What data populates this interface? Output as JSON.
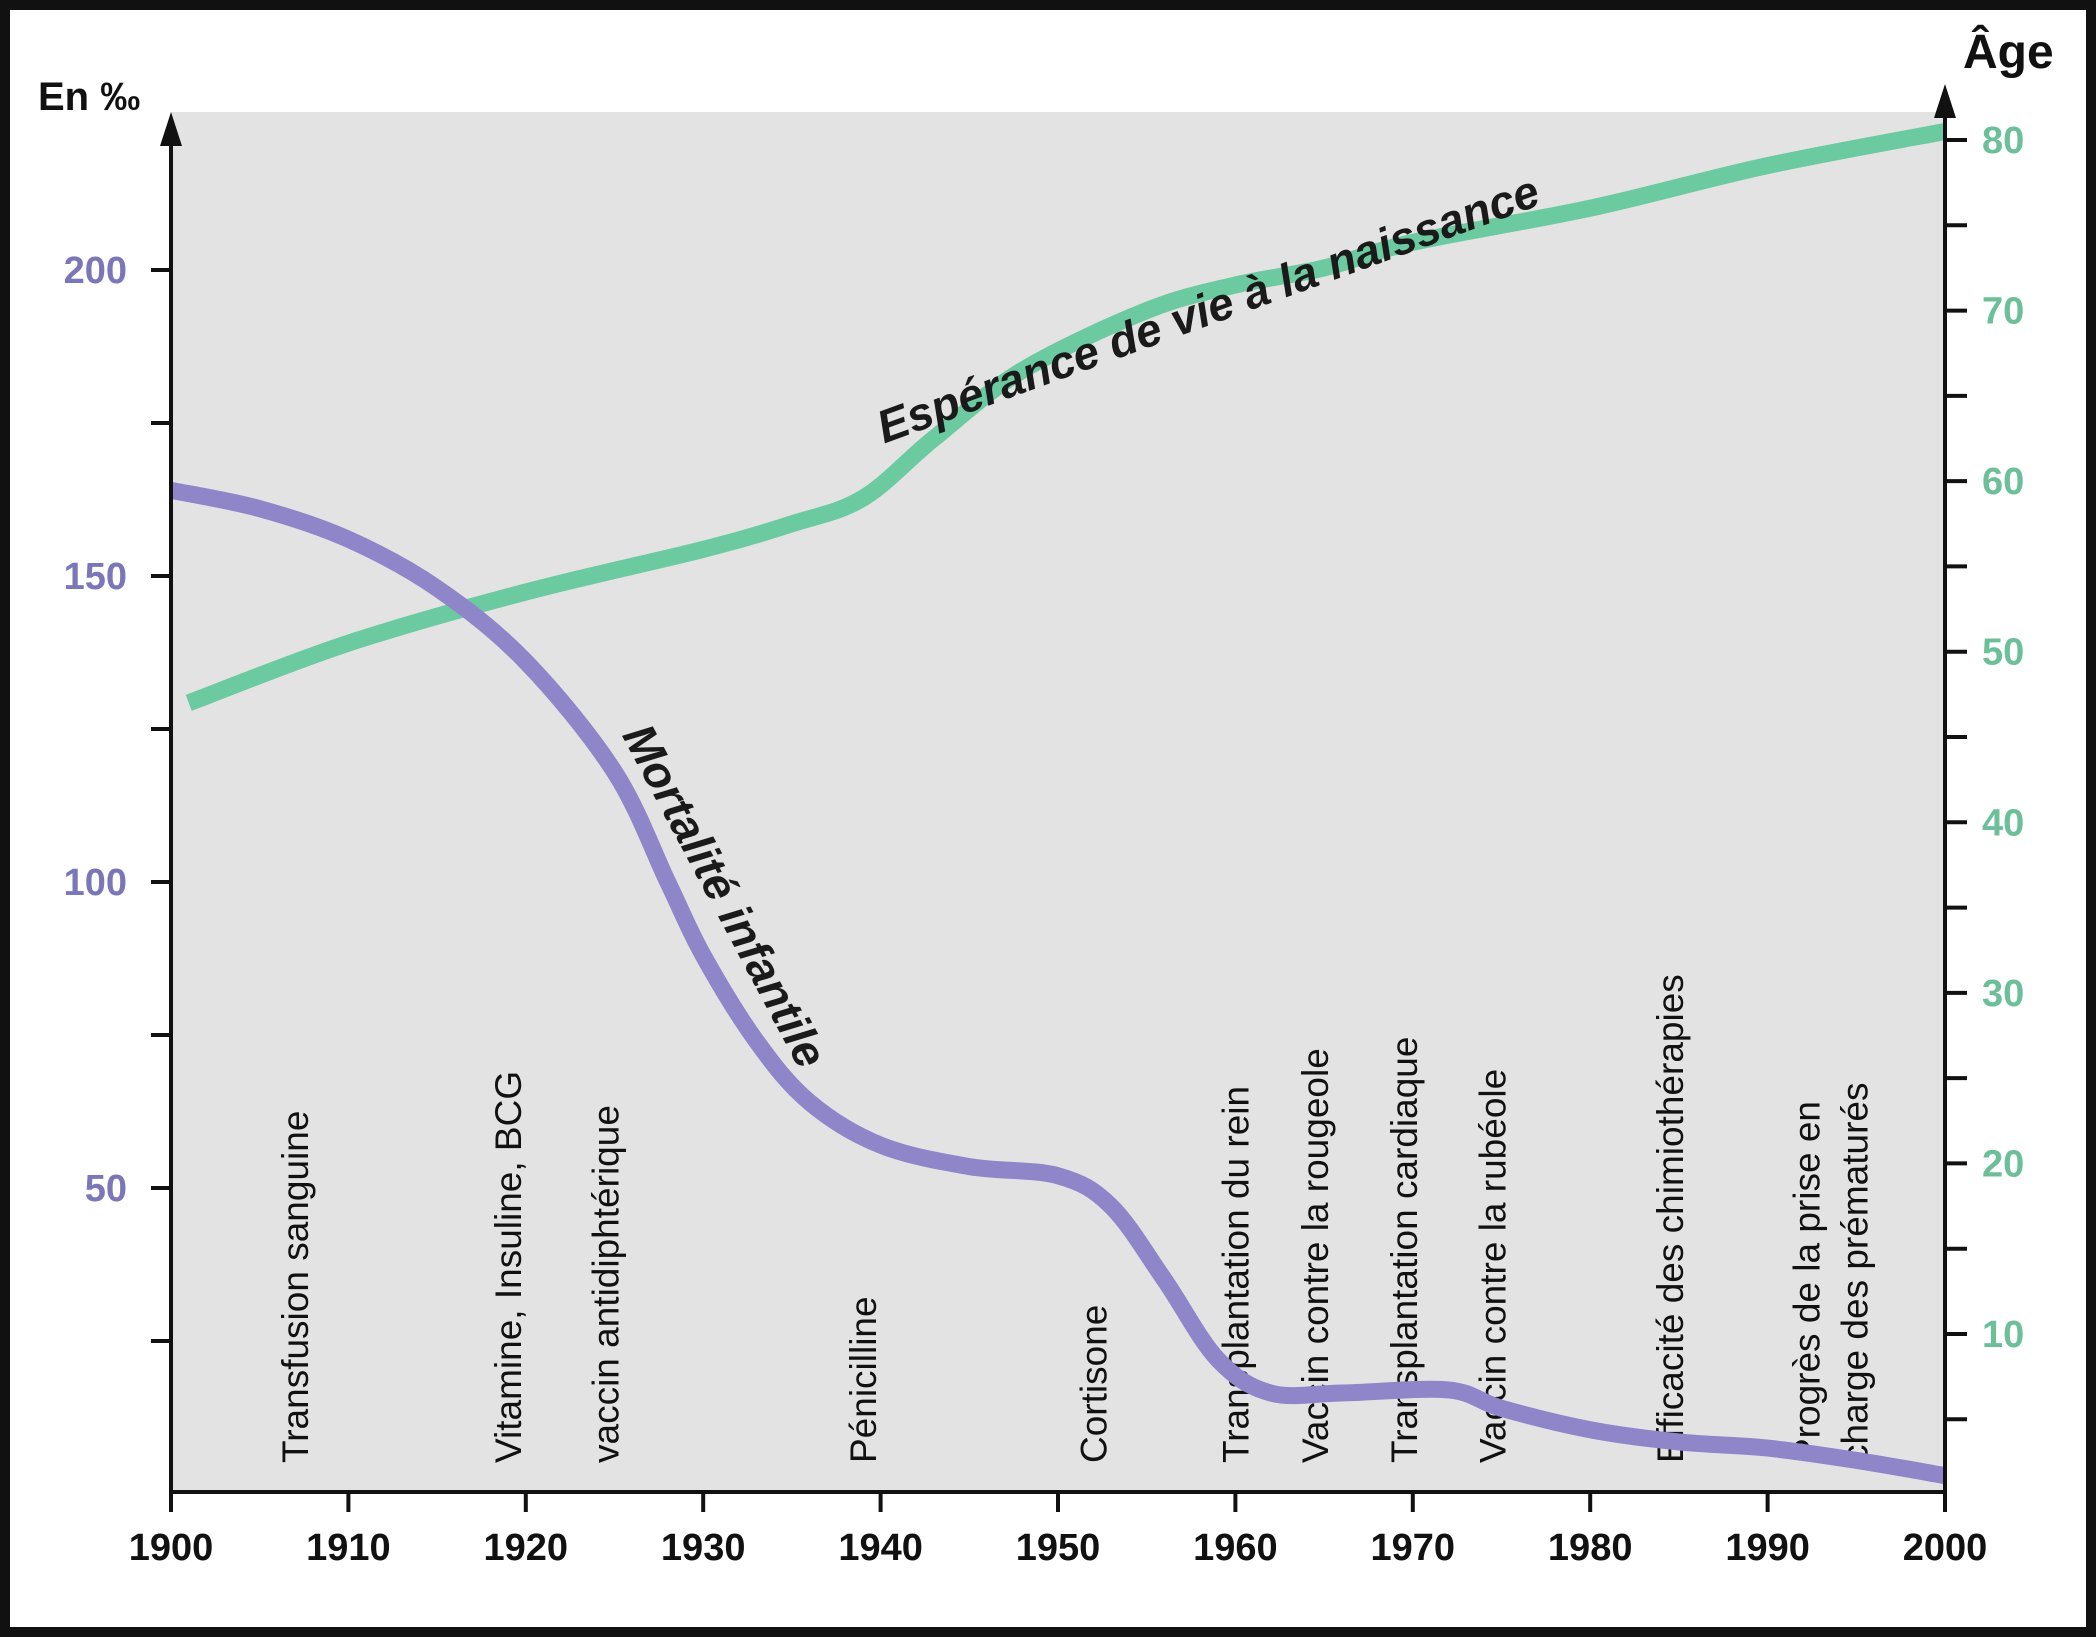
{
  "colors": {
    "background": "#e3e3e3",
    "frame": "#111111",
    "left_axis": "#7b76b9",
    "right_axis": "#6cbf98",
    "mortality": "#8f86c9",
    "life_expectancy": "#6ccaa0"
  },
  "chart_data": {
    "type": "line",
    "x_axis": {
      "range": [
        1900,
        2000
      ],
      "ticks": [
        1900,
        1910,
        1920,
        1930,
        1940,
        1950,
        1960,
        1970,
        1980,
        1990,
        2000
      ]
    },
    "left_axis": {
      "label": "En ‰",
      "range": [
        0,
        225
      ],
      "ticks": [
        50,
        100,
        150,
        200
      ]
    },
    "right_axis": {
      "label": "Âge",
      "range": [
        0,
        80
      ],
      "ticks": [
        10,
        20,
        30,
        40,
        50,
        60,
        70,
        80
      ]
    },
    "grid": false,
    "series": [
      {
        "name": "Mortalité infantile",
        "axis": "left",
        "points": [
          [
            1900,
            164
          ],
          [
            1905,
            161
          ],
          [
            1910,
            156
          ],
          [
            1915,
            148
          ],
          [
            1920,
            136
          ],
          [
            1925,
            118
          ],
          [
            1928,
            100
          ],
          [
            1930,
            88
          ],
          [
            1933,
            74
          ],
          [
            1936,
            64
          ],
          [
            1940,
            57
          ],
          [
            1945,
            53.5
          ],
          [
            1950,
            52
          ],
          [
            1953,
            47
          ],
          [
            1956,
            35
          ],
          [
            1959,
            22
          ],
          [
            1962,
            16.5
          ],
          [
            1966,
            16.5
          ],
          [
            1972,
            17
          ],
          [
            1975,
            14
          ],
          [
            1980,
            10.5
          ],
          [
            1985,
            8.5
          ],
          [
            1990,
            7.5
          ],
          [
            1995,
            5.5
          ],
          [
            2000,
            3
          ]
        ]
      },
      {
        "name": "Espérance de vie à la naissance",
        "axis": "right",
        "points": [
          [
            1901,
            47
          ],
          [
            1910,
            50.5
          ],
          [
            1920,
            53.5
          ],
          [
            1930,
            56
          ],
          [
            1935,
            57.5
          ],
          [
            1939,
            59
          ],
          [
            1943,
            62.5
          ],
          [
            1948,
            66.5
          ],
          [
            1955,
            70
          ],
          [
            1960,
            71.5
          ],
          [
            1965,
            72.5
          ],
          [
            1970,
            74
          ],
          [
            1980,
            76
          ],
          [
            1990,
            78.5
          ],
          [
            2000,
            80.5
          ]
        ]
      }
    ],
    "events": [
      {
        "year": 1907,
        "label": "Transfusion sanguine"
      },
      {
        "year": 1919,
        "label": "Vitamine, Insuline, BCG"
      },
      {
        "year": 1924.5,
        "label": "vaccin antidiphtérique"
      },
      {
        "year": 1939,
        "label": "Pénicilline"
      },
      {
        "year": 1952,
        "label": "Cortisone"
      },
      {
        "year": 1960,
        "label": "Transplantation du rein"
      },
      {
        "year": 1964.5,
        "label": "Vaccin contre la rougeole"
      },
      {
        "year": 1969.5,
        "label": "Transplantation cardiaque"
      },
      {
        "year": 1974.5,
        "label": "Vaccin contre la rubéole"
      },
      {
        "year": 1984.5,
        "label": "Efficacité des chimiothérapies"
      },
      {
        "year": 1993.5,
        "label": "Progrès de la prise en",
        "label2": "charge des prématurés"
      }
    ]
  }
}
